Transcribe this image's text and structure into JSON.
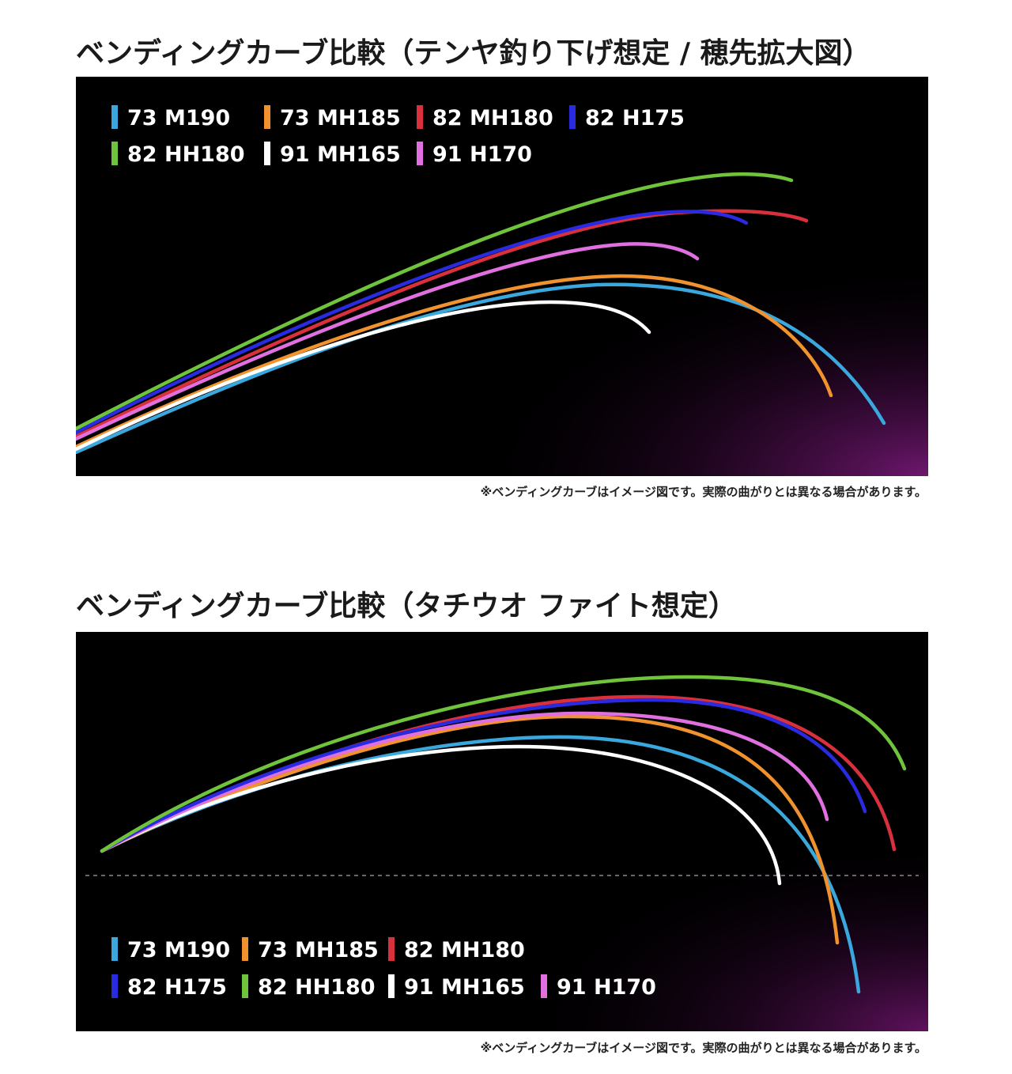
{
  "chart_data": [
    {
      "type": "line",
      "title": "ベンディングカーブ比較（テンヤ釣り下げ想定 / 穂先拡大図）",
      "note": "※ベンディングカーブはイメージ図です。実際の曲がりとは異なる場合があります。",
      "grid": false,
      "legend_position": "top-left",
      "series": [
        {
          "name": "73 M190",
          "color": "#3aa8dc"
        },
        {
          "name": "73 MH185",
          "color": "#f0922e"
        },
        {
          "name": "82 MH180",
          "color": "#d8303c"
        },
        {
          "name": "82 H175",
          "color": "#2a2ae0"
        },
        {
          "name": "82 HH180",
          "color": "#6fc43c"
        },
        {
          "name": "91 MH165",
          "color": "#ffffff"
        },
        {
          "name": "91 H170",
          "color": "#e070e0"
        }
      ]
    },
    {
      "type": "line",
      "title": "ベンディングカーブ比較（タチウオ ファイト想定）",
      "note": "※ベンディングカーブはイメージ図です。実際の曲がりとは異なる場合があります。",
      "grid": false,
      "legend_position": "bottom-left",
      "reference_line": "dashed-horizontal",
      "series": [
        {
          "name": "73 M190",
          "color": "#3aa8dc"
        },
        {
          "name": "73 MH185",
          "color": "#f0922e"
        },
        {
          "name": "82 MH180",
          "color": "#d8303c"
        },
        {
          "name": "82 H175",
          "color": "#2a2ae0"
        },
        {
          "name": "82 HH180",
          "color": "#6fc43c"
        },
        {
          "name": "91 MH165",
          "color": "#ffffff"
        },
        {
          "name": "91 H170",
          "color": "#e070e0"
        }
      ]
    }
  ]
}
